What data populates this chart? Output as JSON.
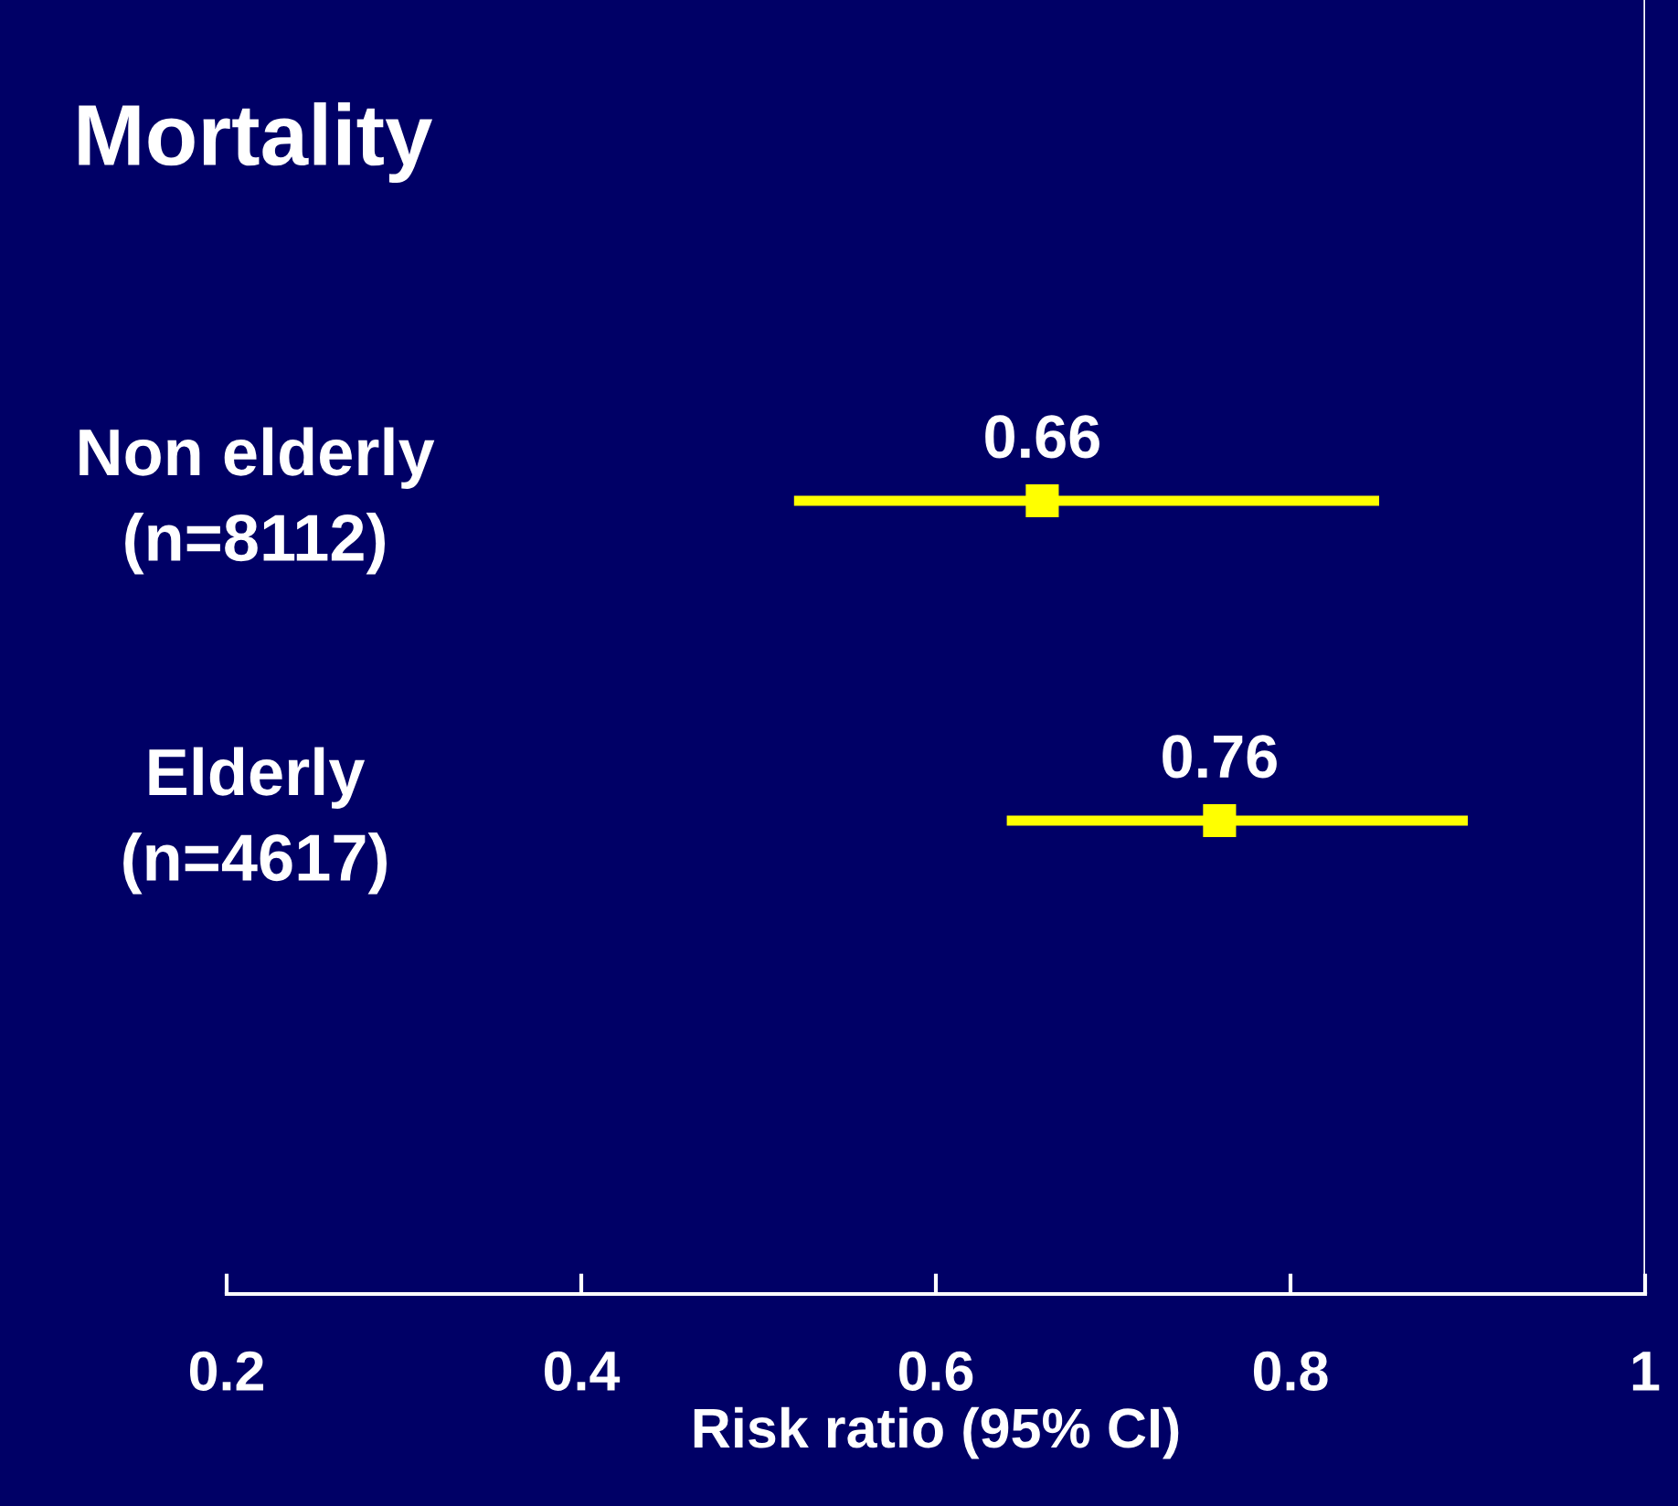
{
  "chart_data": {
    "type": "scatter",
    "orientation": "horizontal",
    "title": "Mortality",
    "xlabel": "Risk ratio (95% CI)",
    "categories": [
      "Non elderly\n(n=8112)",
      "Elderly\n(n=4617)"
    ],
    "values": [
      0.66,
      0.76
    ],
    "color": "#ffff00",
    "errors": [
      [
        0.52,
        0.85
      ],
      [
        0.64,
        0.9
      ]
    ],
    "xlim": [
      0.2,
      1
    ],
    "xticks": [
      0.2,
      0.4,
      0.6,
      0.8,
      1
    ],
    "ref_lines": [
      {
        "axis": "x",
        "value": 1,
        "color": "#ffffff"
      }
    ],
    "marker": "square",
    "data_labels": true,
    "grid": false,
    "legend": false
  }
}
